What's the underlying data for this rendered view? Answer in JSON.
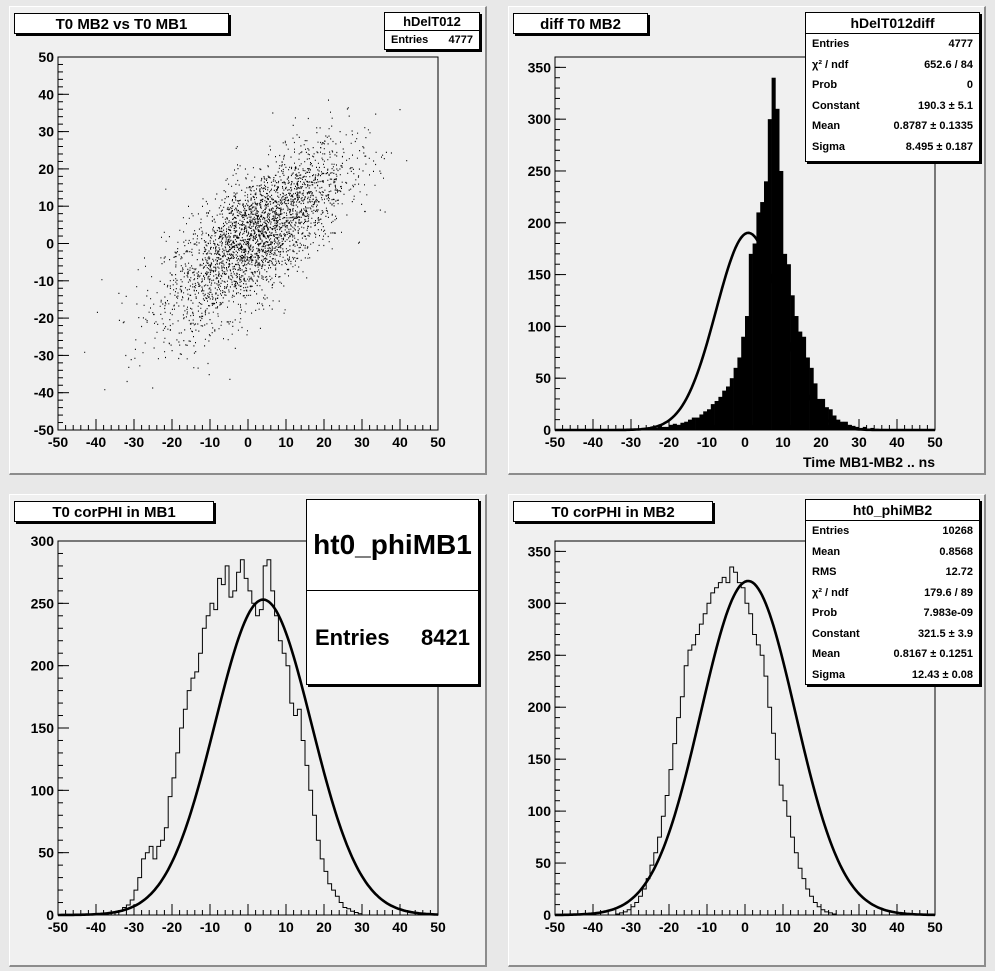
{
  "pads": {
    "scatter": {
      "title": "T0 MB2 vs T0 MB1",
      "stats": {
        "name": "hDelT012",
        "rows": [
          [
            "Entries",
            "4777"
          ]
        ]
      }
    },
    "diff": {
      "title": "diff T0 MB2",
      "xlabel": "Time MB1-MB2  ..  ns",
      "stats": {
        "name": "hDelT012diff",
        "rows": [
          [
            "Entries",
            "4777"
          ],
          [
            "χ² / ndf",
            "652.6 / 84"
          ],
          [
            "Prob",
            "0"
          ],
          [
            "Constant",
            "190.3 ± 5.1"
          ],
          [
            "Mean",
            "0.8787 ± 0.1335"
          ],
          [
            "Sigma",
            "8.495 ± 0.187"
          ]
        ]
      }
    },
    "mb1": {
      "title": "T0 corPHI in MB1",
      "stats": {
        "name": "ht0_phiMB1",
        "rows": [
          [
            "Entries",
            "8421"
          ]
        ]
      }
    },
    "mb2": {
      "title": "T0 corPHI in MB2",
      "stats": {
        "name": "ht0_phiMB2",
        "rows": [
          [
            "Entries",
            "10268"
          ],
          [
            "Mean",
            "0.8568"
          ],
          [
            "RMS",
            "12.72"
          ],
          [
            "χ² / ndf",
            "179.6 / 89"
          ],
          [
            "Prob",
            "7.983e-09"
          ],
          [
            "Constant",
            "321.5 ± 3.9"
          ],
          [
            "Mean",
            "0.8167 ± 0.1251"
          ],
          [
            "Sigma",
            "12.43 ± 0.08"
          ]
        ]
      }
    }
  },
  "chart_data": [
    {
      "type": "scatter",
      "title": "T0 MB2 vs T0 MB1",
      "xlim": [
        -50,
        50
      ],
      "ylim": [
        -50,
        50
      ],
      "xticks": [
        -50,
        -40,
        -30,
        -20,
        -10,
        0,
        10,
        20,
        30,
        40,
        50
      ],
      "yticks": [
        -50,
        -40,
        -30,
        -20,
        -10,
        0,
        10,
        20,
        30,
        40,
        50
      ],
      "entries": 4777,
      "distribution": {
        "mean_x": 2,
        "mean_y": 2,
        "sigma_x": 12,
        "sigma_y": 12,
        "correlation": 0.72
      }
    },
    {
      "type": "bar",
      "title": "diff T0 MB2",
      "xlabel": "Time MB1-MB2  ..  ns",
      "xlim": [
        -50,
        50
      ],
      "ylim": [
        0,
        360
      ],
      "xticks": [
        -50,
        -40,
        -30,
        -20,
        -10,
        0,
        10,
        20,
        30,
        40,
        50
      ],
      "yticks": [
        0,
        50,
        100,
        150,
        200,
        250,
        300,
        350
      ],
      "bin_width": 1,
      "bins_from": -50,
      "values": [
        0,
        0,
        0,
        0,
        0,
        0,
        0,
        0,
        0,
        0,
        0,
        0,
        0,
        0,
        0,
        0,
        0,
        0,
        0,
        0,
        0,
        1,
        0,
        1,
        2,
        3,
        2,
        4,
        3,
        3,
        5,
        6,
        5,
        7,
        8,
        10,
        12,
        12,
        15,
        18,
        20,
        25,
        28,
        32,
        38,
        42,
        50,
        60,
        70,
        90,
        110,
        170,
        180,
        210,
        220,
        240,
        300,
        340,
        310,
        250,
        170,
        160,
        130,
        110,
        95,
        90,
        70,
        60,
        45,
        30,
        30,
        22,
        20,
        14,
        10,
        8,
        8,
        5,
        4,
        3,
        2,
        3,
        1,
        2,
        1,
        0,
        1,
        0,
        0,
        0,
        0,
        0,
        0,
        0,
        0,
        0,
        0,
        0,
        0,
        0
      ],
      "fit": {
        "constant": 190.3,
        "mean": 0.8787,
        "sigma": 8.495
      }
    },
    {
      "type": "bar",
      "title": "T0 corPHI in MB1",
      "xlim": [
        -50,
        50
      ],
      "ylim": [
        0,
        300
      ],
      "xticks": [
        -50,
        -40,
        -30,
        -20,
        -10,
        0,
        10,
        20,
        30,
        40,
        50
      ],
      "yticks": [
        0,
        50,
        100,
        150,
        200,
        250,
        300
      ],
      "bin_width": 1,
      "bins_from": -50,
      "values": [
        0,
        0,
        0,
        0,
        0,
        0,
        0,
        0,
        0,
        0,
        0,
        0,
        0,
        0,
        0,
        2,
        3,
        6,
        8,
        12,
        20,
        30,
        45,
        50,
        55,
        45,
        55,
        60,
        70,
        95,
        110,
        130,
        150,
        165,
        180,
        190,
        195,
        210,
        230,
        240,
        250,
        245,
        270,
        265,
        280,
        255,
        260,
        275,
        285,
        270,
        260,
        250,
        240,
        245,
        280,
        285,
        260,
        240,
        220,
        210,
        200,
        170,
        160,
        165,
        140,
        120,
        100,
        80,
        60,
        45,
        35,
        25,
        20,
        15,
        10,
        6,
        5,
        3,
        2,
        1,
        0,
        0,
        0,
        0,
        0,
        0,
        0,
        0,
        0,
        0,
        0,
        0,
        0,
        0,
        0,
        0,
        0,
        0,
        0,
        0
      ],
      "fit": {
        "constant": 253,
        "mean": 4.0,
        "sigma": 12.7
      }
    },
    {
      "type": "bar",
      "title": "T0 corPHI in MB2",
      "xlim": [
        -50,
        50
      ],
      "ylim": [
        0,
        360
      ],
      "xticks": [
        -50,
        -40,
        -30,
        -20,
        -10,
        0,
        10,
        20,
        30,
        40,
        50
      ],
      "yticks": [
        0,
        50,
        100,
        150,
        200,
        250,
        300,
        350
      ],
      "bin_width": 1,
      "bins_from": -50,
      "values": [
        0,
        0,
        0,
        0,
        0,
        0,
        0,
        0,
        0,
        0,
        0,
        0,
        0,
        0,
        0,
        0,
        1,
        2,
        3,
        5,
        8,
        12,
        18,
        25,
        35,
        48,
        60,
        75,
        95,
        115,
        140,
        165,
        190,
        210,
        240,
        255,
        260,
        270,
        280,
        290,
        300,
        310,
        315,
        320,
        325,
        320,
        335,
        330,
        320,
        315,
        300,
        290,
        270,
        260,
        250,
        230,
        200,
        175,
        150,
        125,
        110,
        95,
        75,
        60,
        45,
        35,
        25,
        18,
        12,
        8,
        5,
        3,
        2,
        1,
        0,
        0,
        0,
        0,
        0,
        0,
        0,
        0,
        0,
        0,
        0,
        0,
        0,
        0,
        0,
        0,
        0,
        0,
        0,
        0,
        0,
        0,
        0,
        0,
        0,
        0
      ],
      "fit": {
        "constant": 321.5,
        "mean": 0.8167,
        "sigma": 12.43
      }
    }
  ]
}
